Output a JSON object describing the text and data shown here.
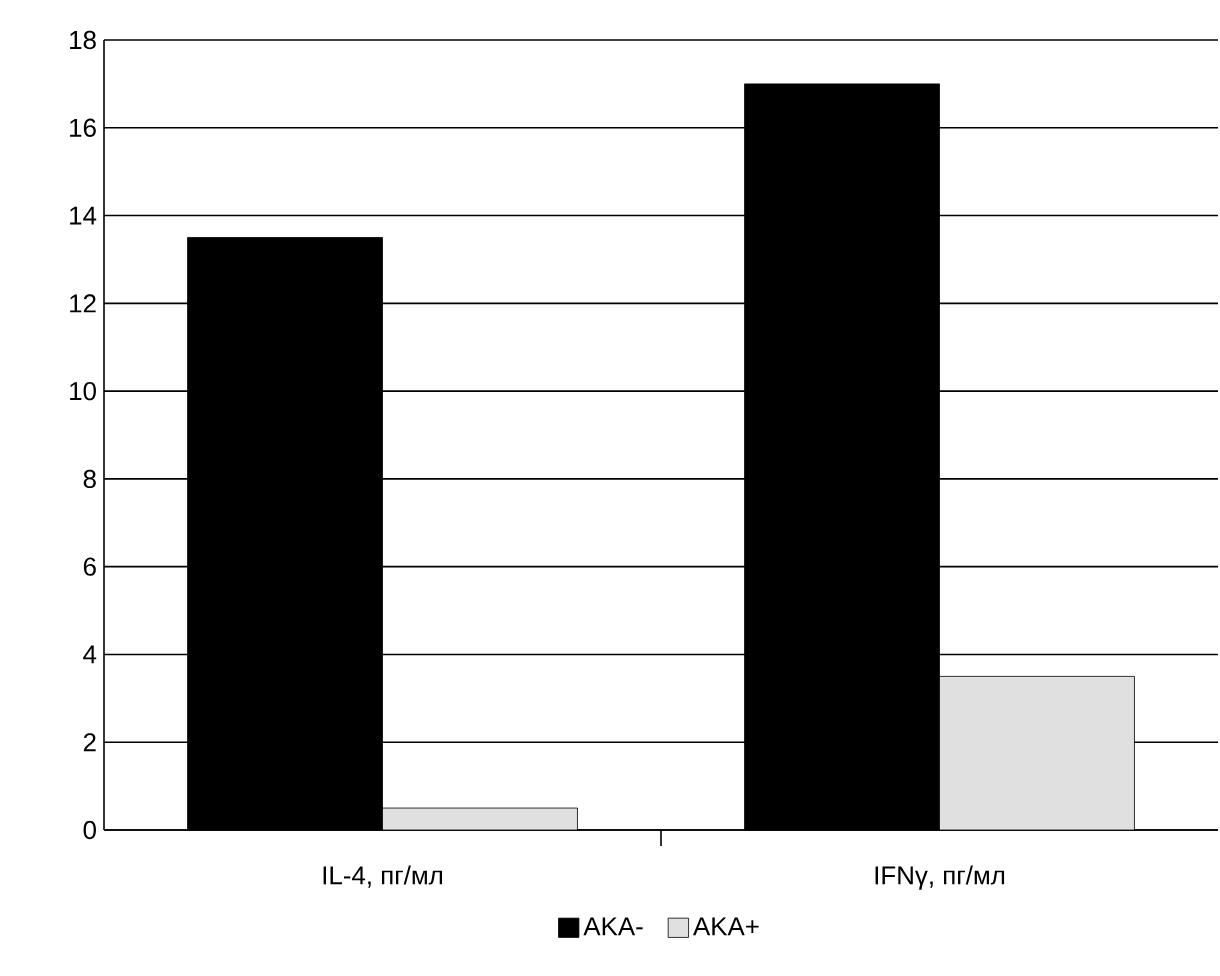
{
  "chart_data": {
    "type": "bar",
    "categories": [
      "IL-4, пг/мл",
      "IFNγ, пг/мл"
    ],
    "series": [
      {
        "name": "AKA-",
        "color": "#000000",
        "values": [
          13.5,
          17
        ]
      },
      {
        "name": "AKA+",
        "color": "#e0e0e0",
        "values": [
          0.5,
          3.5
        ]
      }
    ],
    "ylim": [
      0,
      18
    ],
    "yticks": [
      0,
      2,
      4,
      6,
      8,
      10,
      12,
      14,
      16,
      18
    ],
    "grid": "y",
    "legend": "bottom"
  }
}
